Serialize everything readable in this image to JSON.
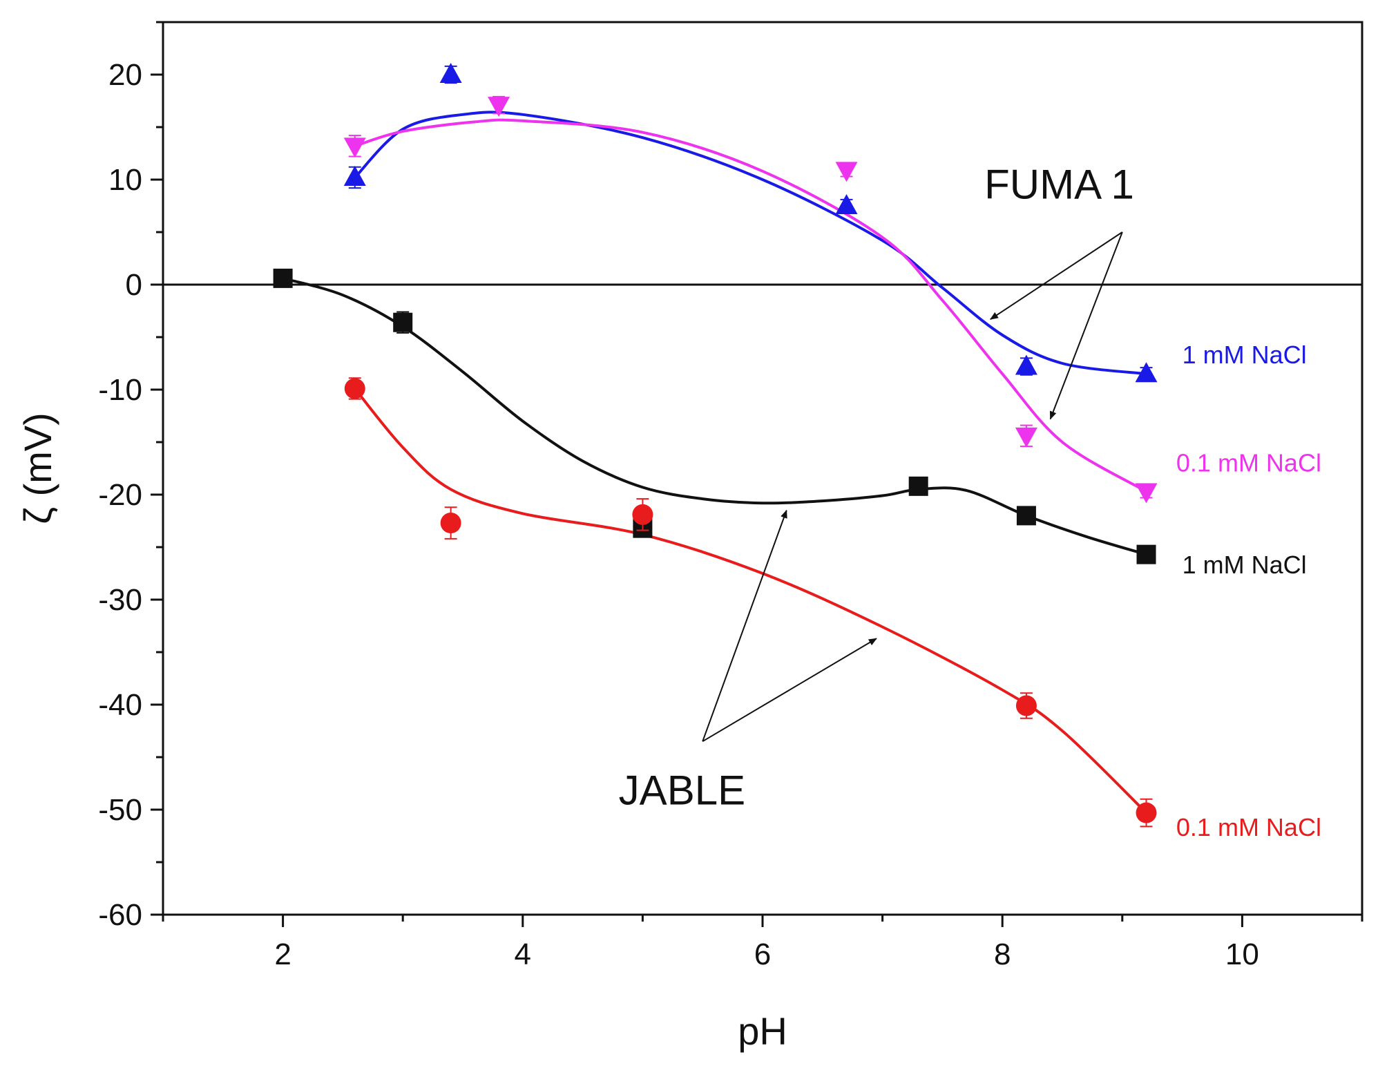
{
  "chart_data": {
    "type": "scatter",
    "title": "",
    "xlabel": "pH",
    "ylabel": "ζ (mV)",
    "xlim": [
      1,
      11
    ],
    "ylim": [
      -60,
      25
    ],
    "xticks": [
      2,
      4,
      6,
      8,
      10
    ],
    "yticks": [
      -60,
      -50,
      -40,
      -30,
      -20,
      -10,
      0,
      10,
      20
    ],
    "xtick_labels": [
      "2",
      "4",
      "6",
      "8",
      "10"
    ],
    "ytick_labels": [
      "-60",
      "-50",
      "-40",
      "-30",
      "-20",
      "-10",
      "0",
      "10",
      "20"
    ],
    "zero_line": 0,
    "series": [
      {
        "key": "fuma_1mm",
        "name": "FUMA 1, 1 mM NaCl",
        "label": "1 mM NaCl",
        "label_at": [
          9.5,
          -7.5
        ],
        "color": "#1a1ae6",
        "marker": "triangle-up",
        "x": [
          2.6,
          3.4,
          6.7,
          8.2,
          9.2
        ],
        "y": [
          10.2,
          20.0,
          7.5,
          -7.8,
          -8.5
        ],
        "err": [
          1.0,
          0.8,
          0.6,
          0.8,
          0.6
        ],
        "fit": [
          [
            2.6,
            10.2
          ],
          [
            3.0,
            14.8
          ],
          [
            3.5,
            16.2
          ],
          [
            4.0,
            16.2
          ],
          [
            5.0,
            14.0
          ],
          [
            6.0,
            10.0
          ],
          [
            7.0,
            4.2
          ],
          [
            7.5,
            -0.3
          ],
          [
            8.0,
            -4.8
          ],
          [
            8.5,
            -7.5
          ],
          [
            9.2,
            -8.5
          ]
        ]
      },
      {
        "key": "fuma_01mm",
        "name": "FUMA 1, 0.1 mM NaCl",
        "label": "0.1 mM NaCl",
        "label_at": [
          9.45,
          -17.8
        ],
        "color": "#ee33ee",
        "marker": "triangle-down",
        "x": [
          2.6,
          3.8,
          6.7,
          8.2,
          9.2
        ],
        "y": [
          13.2,
          17.1,
          10.9,
          -14.4,
          -19.7
        ],
        "err": [
          1.0,
          0.8,
          0.6,
          1.0,
          0.6
        ],
        "fit": [
          [
            2.6,
            13.2
          ],
          [
            3.0,
            14.6
          ],
          [
            3.6,
            15.5
          ],
          [
            4.0,
            15.6
          ],
          [
            5.0,
            14.5
          ],
          [
            6.0,
            10.8
          ],
          [
            7.0,
            4.5
          ],
          [
            7.5,
            -1.5
          ],
          [
            8.0,
            -8.5
          ],
          [
            8.5,
            -15.0
          ],
          [
            9.2,
            -19.7
          ]
        ]
      },
      {
        "key": "jable_1mm",
        "name": "JABLE, 1 mM NaCl",
        "label": "1 mM NaCl",
        "label_at": [
          9.5,
          -27.5
        ],
        "color": "#111111",
        "marker": "square",
        "x": [
          2.0,
          3.0,
          5.0,
          7.3,
          8.2,
          9.2
        ],
        "y": [
          0.6,
          -3.6,
          -23.2,
          -19.2,
          -22.0,
          -25.7
        ],
        "err": [
          0.5,
          1.0,
          0.8,
          0.5,
          0.5,
          0.5
        ],
        "fit": [
          [
            2.0,
            0.6
          ],
          [
            2.5,
            -1.0
          ],
          [
            3.0,
            -4.0
          ],
          [
            3.5,
            -8.3
          ],
          [
            4.0,
            -13.0
          ],
          [
            4.5,
            -16.8
          ],
          [
            5.0,
            -19.3
          ],
          [
            5.5,
            -20.4
          ],
          [
            6.0,
            -20.8
          ],
          [
            6.5,
            -20.6
          ],
          [
            7.0,
            -20.1
          ],
          [
            7.3,
            -19.5
          ],
          [
            7.7,
            -19.6
          ],
          [
            8.2,
            -22.0
          ],
          [
            8.7,
            -24.0
          ],
          [
            9.2,
            -25.7
          ]
        ]
      },
      {
        "key": "jable_01mm",
        "name": "JABLE, 0.1 mM NaCl",
        "label": "0.1 mM NaCl",
        "label_at": [
          9.45,
          -52.5
        ],
        "color": "#e81c1c",
        "marker": "circle",
        "x": [
          2.6,
          3.4,
          5.0,
          8.2,
          9.2
        ],
        "y": [
          -9.9,
          -22.7,
          -21.9,
          -40.1,
          -50.3
        ],
        "err": [
          1.0,
          1.5,
          1.5,
          1.2,
          1.3
        ],
        "fit": [
          [
            2.6,
            -9.9
          ],
          [
            3.0,
            -15.5
          ],
          [
            3.4,
            -19.5
          ],
          [
            4.0,
            -21.8
          ],
          [
            5.0,
            -23.8
          ],
          [
            6.0,
            -27.5
          ],
          [
            7.0,
            -32.6
          ],
          [
            8.0,
            -38.6
          ],
          [
            8.5,
            -42.5
          ],
          [
            9.2,
            -50.3
          ]
        ]
      }
    ],
    "annotations": [
      {
        "key": "fuma",
        "text": "FUMA 1",
        "text_at": [
          7.85,
          8.2
        ],
        "arrow_from": [
          9.0,
          5.0
        ],
        "arrows_to": [
          [
            7.9,
            -3.3
          ],
          [
            8.4,
            -12.8
          ]
        ]
      },
      {
        "key": "jable",
        "text": "JABLE",
        "text_at": [
          4.8,
          -49.5
        ],
        "arrow_from": [
          5.5,
          -43.5
        ],
        "arrows_to": [
          [
            6.2,
            -21.5
          ],
          [
            6.95,
            -33.7
          ]
        ]
      }
    ]
  }
}
